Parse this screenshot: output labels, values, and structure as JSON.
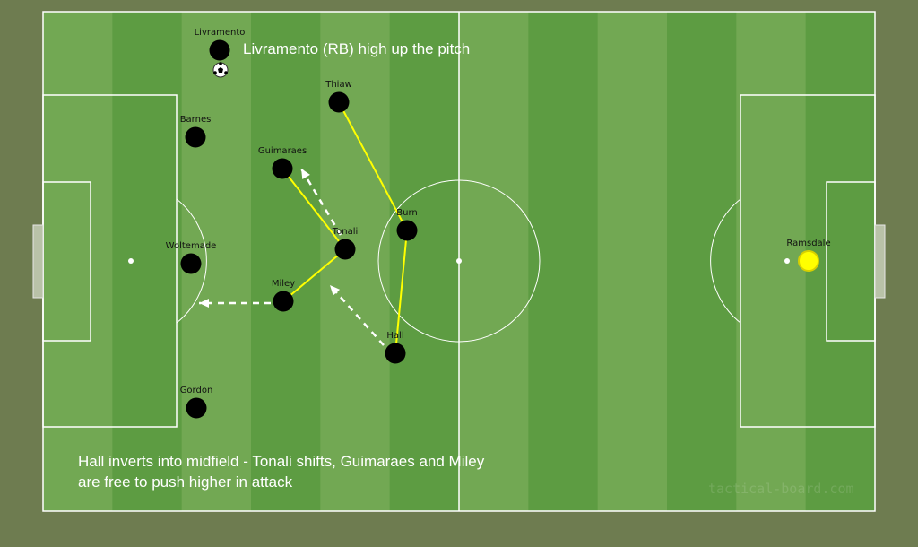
{
  "board": {
    "colors": {
      "stripe_light": "#72a853",
      "stripe_dark": "#5d9c42",
      "lines": "#ffffff",
      "player": "#000000",
      "goalkeeper": "#ffff00",
      "link": "#ffff00",
      "background": "#6e7c50"
    },
    "watermark": "tactical-board.com"
  },
  "players": [
    {
      "id": "livramento",
      "name": "Livramento"
    },
    {
      "id": "thiaw",
      "name": "Thiaw"
    },
    {
      "id": "barnes",
      "name": "Barnes"
    },
    {
      "id": "guimaraes",
      "name": "Guimaraes"
    },
    {
      "id": "burn",
      "name": "Burn"
    },
    {
      "id": "tonali",
      "name": "Tonali"
    },
    {
      "id": "woltemade",
      "name": "Woltemade"
    },
    {
      "id": "miley",
      "name": "Miley"
    },
    {
      "id": "hall",
      "name": "Hall"
    },
    {
      "id": "gordon",
      "name": "Gordon"
    },
    {
      "id": "ramsdale",
      "name": "Ramsdale",
      "goalkeeper": true
    }
  ],
  "links": [
    [
      "thiaw",
      "burn"
    ],
    [
      "burn",
      "hall"
    ],
    [
      "guimaraes",
      "tonali"
    ],
    [
      "tonali",
      "miley"
    ]
  ],
  "movement_arrows": [
    {
      "from": "tonali",
      "toward": "guimaraes",
      "style": "dashed"
    },
    {
      "from": "miley",
      "toward": "woltemade",
      "style": "dashed"
    },
    {
      "from": "hall",
      "toward": "tonali",
      "style": "dashed"
    }
  ],
  "ball": {
    "icon": "soccer-ball-icon",
    "with": "livramento"
  },
  "annotations": {
    "top": "Livramento (RB) high up the pitch",
    "bottom_line1": "Hall inverts into midfield - Tonali shifts, Guimaraes and Miley",
    "bottom_line2": "are free to push higher in attack"
  }
}
